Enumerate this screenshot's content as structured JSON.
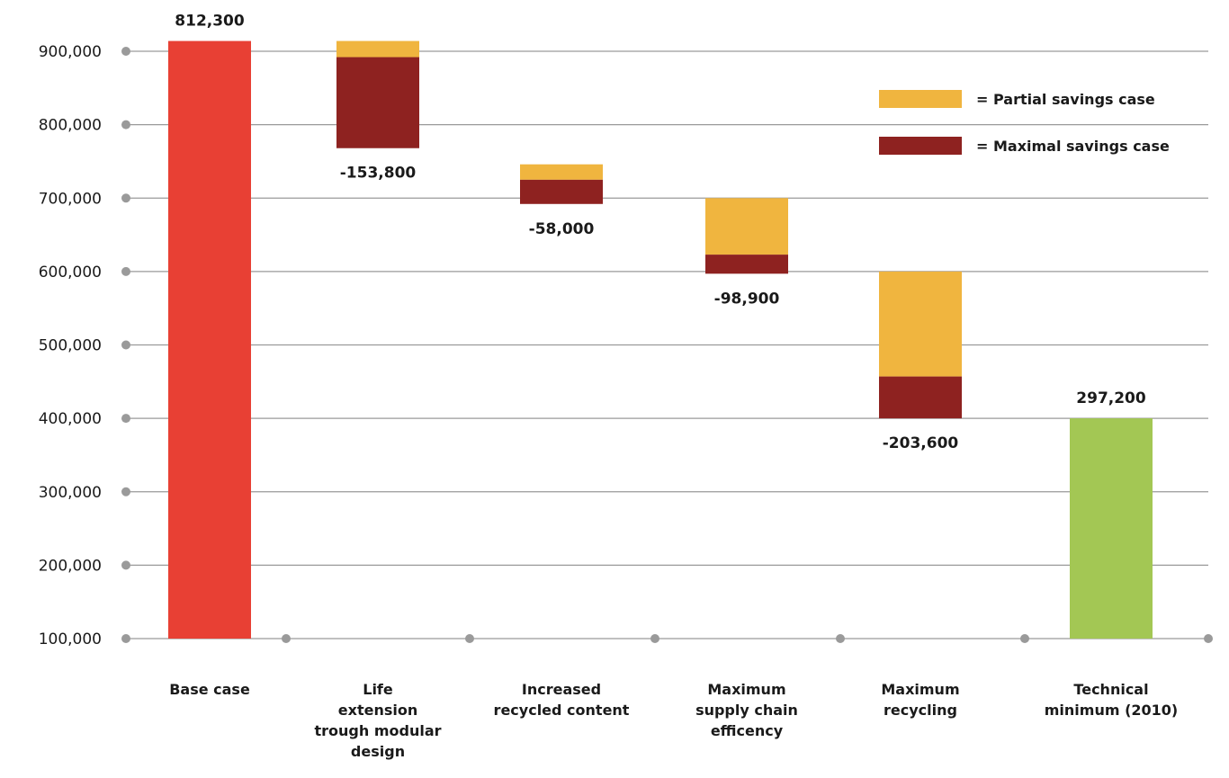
{
  "chart_data": {
    "type": "bar",
    "subtype": "waterfall",
    "ylim": [
      100000,
      900000
    ],
    "y_ticks": [
      100000,
      200000,
      300000,
      400000,
      500000,
      600000,
      700000,
      800000,
      900000
    ],
    "y_tick_labels": [
      "100,000",
      "200,000",
      "300,000",
      "400,000",
      "500,000",
      "600,000",
      "700,000",
      "800,000",
      "900,000"
    ],
    "grid": true,
    "legend_position": "top-right",
    "colors": {
      "base": "#e84034",
      "partial": "#f0b53f",
      "maximal": "#8e2220",
      "final": "#a3c754",
      "grid": "#9a9a9a"
    },
    "categories": [
      {
        "label_lines": [
          "Base case"
        ],
        "kind": "total",
        "from": 100000,
        "to": 914000,
        "value_label": "812,300",
        "label_pos": "top"
      },
      {
        "label_lines": [
          "Life",
          "extension",
          "trough modular",
          "design"
        ],
        "kind": "step",
        "top": 914000,
        "split": 892000,
        "bottom": 768000,
        "value_label": "-153,800",
        "label_pos": "bottom"
      },
      {
        "label_lines": [
          "Increased",
          "recycled content"
        ],
        "kind": "step",
        "top": 746000,
        "split": 725000,
        "bottom": 692000,
        "value_label": "-58,000",
        "label_pos": "bottom"
      },
      {
        "label_lines": [
          "Maximum",
          "supply chain",
          "efficency"
        ],
        "kind": "step",
        "top": 700000,
        "split": 623000,
        "bottom": 597000,
        "value_label": "-98,900",
        "label_pos": "bottom"
      },
      {
        "label_lines": [
          "Maximum",
          "recycling"
        ],
        "kind": "step",
        "top": 600000,
        "split": 457000,
        "bottom": 400000,
        "value_label": "-203,600",
        "label_pos": "bottom"
      },
      {
        "label_lines": [
          "Technical",
          "minimum (2010)"
        ],
        "kind": "final",
        "from": 100000,
        "to": 400000,
        "value_label": "297,200",
        "label_pos": "top"
      }
    ],
    "legend": [
      {
        "key": "partial",
        "label": "= Partial savings case"
      },
      {
        "key": "maximal",
        "label": "= Maximal savings case"
      }
    ]
  }
}
